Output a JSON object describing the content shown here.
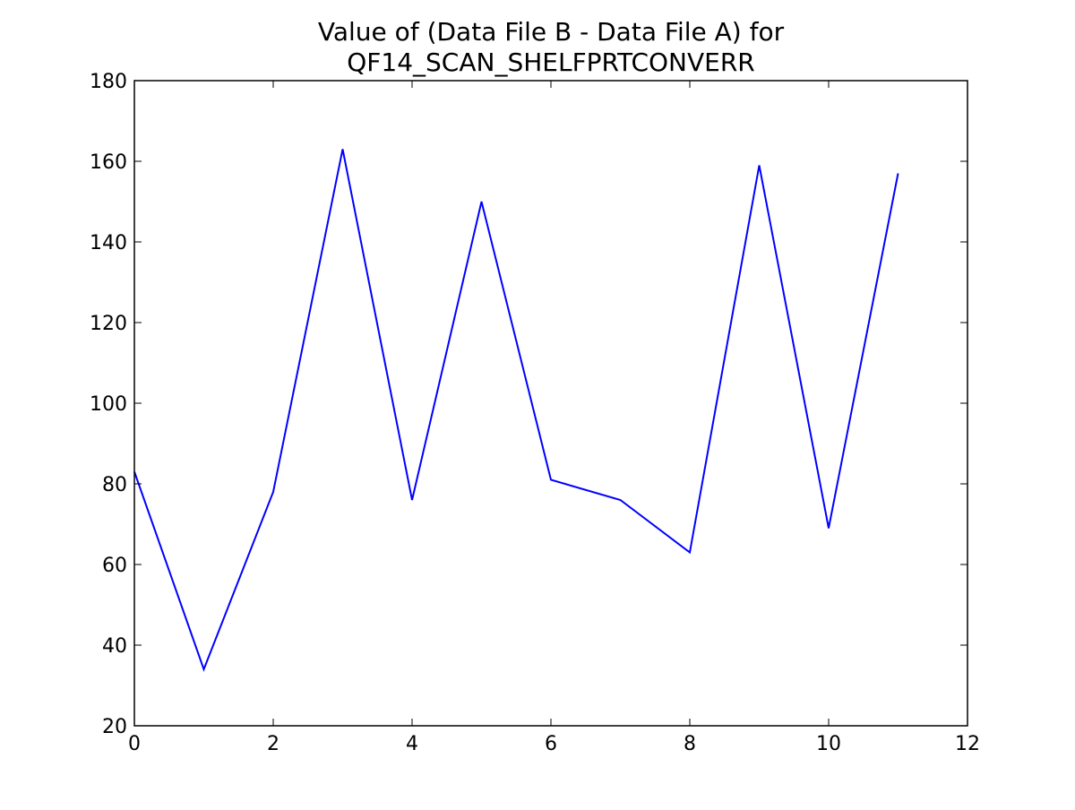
{
  "chart_data": {
    "type": "line",
    "title_lines": [
      "Value of (Data File B - Data File A) for",
      "QF14_SCAN_SHELFPRTCONVERR"
    ],
    "xlabel": "",
    "ylabel": "",
    "xlim": [
      0,
      12
    ],
    "ylim": [
      20,
      180
    ],
    "x_ticks": [
      0,
      2,
      4,
      6,
      8,
      10,
      12
    ],
    "y_ticks": [
      20,
      40,
      60,
      80,
      100,
      120,
      140,
      160,
      180
    ],
    "x_tick_labels": [
      "0",
      "2",
      "4",
      "6",
      "8",
      "10",
      "12"
    ],
    "y_tick_labels": [
      "20",
      "40",
      "60",
      "80",
      "100",
      "120",
      "140",
      "160",
      "180"
    ],
    "grid": false,
    "legend": "none",
    "series": [
      {
        "color": "#0000ff",
        "x": [
          0,
          1,
          2,
          3,
          4,
          5,
          6,
          7,
          8,
          9,
          10,
          11
        ],
        "y": [
          83,
          34,
          78,
          163,
          76,
          150,
          81,
          76,
          63,
          159,
          69,
          157
        ]
      }
    ]
  }
}
